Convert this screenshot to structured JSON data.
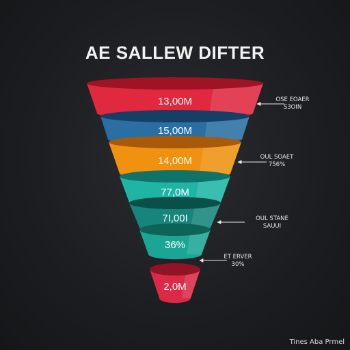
{
  "chart_data": {
    "type": "funnel",
    "title": "AE SALLEW DIFTER",
    "stages": [
      {
        "label": "13,00M",
        "color": "#e0283f",
        "dark": "#9e1424"
      },
      {
        "label": "15,00M",
        "color": "#2a6fa3",
        "dark": "#163f66"
      },
      {
        "label": "14,00M",
        "color": "#f0920f",
        "dark": "#a8590a"
      },
      {
        "label": "77,0M",
        "color": "#1fb5a5",
        "dark": "#0f7369"
      },
      {
        "label": "7I,00I",
        "color": "#16857c",
        "dark": "#0b4f49"
      },
      {
        "label": "36%",
        "color": "#1aa594",
        "dark": "#0d6358"
      },
      {
        "label": "2,0M",
        "color": "#dc2a46",
        "dark": "#8f1426"
      }
    ],
    "annotations": [
      {
        "line1": "OSE EOAER",
        "line2": "S3OIN"
      },
      {
        "line1": "OUL SOAET",
        "line2": "756%"
      },
      {
        "line1": "OUL STANE",
        "line2": "SAUUI"
      },
      {
        "line1": "ET ERVER",
        "line2": "30%"
      }
    ]
  },
  "watermark": "Tines Aba Prmel"
}
